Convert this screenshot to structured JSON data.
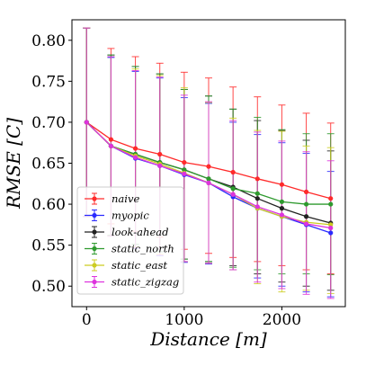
{
  "chart_data": {
    "type": "line",
    "title": "",
    "xlabel": "Distance [m]",
    "ylabel": "RMSE [C]",
    "xlim": [
      -150,
      2650
    ],
    "ylim": [
      0.475,
      0.825
    ],
    "xticks": [
      0,
      1000,
      2000
    ],
    "yticks": [
      0.5,
      0.55,
      0.6,
      0.65,
      0.7,
      0.75,
      0.8
    ],
    "grid": false,
    "legend_position": "lower-left",
    "x": [
      0,
      250,
      500,
      750,
      1000,
      1250,
      1500,
      1750,
      2000,
      2250,
      2500
    ],
    "series": [
      {
        "name": "naive",
        "color": "#ff2a2a",
        "values": [
          0.7,
          0.679,
          0.668,
          0.661,
          0.651,
          0.646,
          0.639,
          0.631,
          0.624,
          0.615,
          0.607
        ],
        "err_low": [
          0.585,
          0.576,
          0.567,
          0.56,
          0.545,
          0.54,
          0.535,
          0.53,
          0.525,
          0.52,
          0.515
        ],
        "err_high": [
          0.815,
          0.79,
          0.78,
          0.772,
          0.761,
          0.754,
          0.743,
          0.731,
          0.721,
          0.711,
          0.699
        ]
      },
      {
        "name": "myopic",
        "color": "#2a2aff",
        "values": [
          0.7,
          0.671,
          0.656,
          0.647,
          0.636,
          0.626,
          0.609,
          0.595,
          0.585,
          0.575,
          0.565
        ],
        "err_low": [
          0.585,
          0.561,
          0.546,
          0.537,
          0.529,
          0.527,
          0.52,
          0.51,
          0.5,
          0.493,
          0.487
        ],
        "err_high": [
          0.815,
          0.779,
          0.762,
          0.754,
          0.73,
          0.723,
          0.7,
          0.685,
          0.675,
          0.662,
          0.64
        ]
      },
      {
        "name": "look-ahead",
        "color": "#222222",
        "values": [
          0.7,
          0.671,
          0.661,
          0.651,
          0.642,
          0.631,
          0.621,
          0.607,
          0.595,
          0.585,
          0.577
        ],
        "err_low": [
          0.585,
          0.562,
          0.551,
          0.542,
          0.533,
          0.53,
          0.525,
          0.515,
          0.505,
          0.5,
          0.495
        ],
        "err_high": [
          0.815,
          0.782,
          0.768,
          0.759,
          0.74,
          0.732,
          0.716,
          0.702,
          0.69,
          0.678,
          0.665
        ]
      },
      {
        "name": "static_north",
        "color": "#2e9a2e",
        "values": [
          0.7,
          0.671,
          0.661,
          0.651,
          0.642,
          0.631,
          0.619,
          0.613,
          0.603,
          0.6,
          0.6
        ],
        "err_low": [
          0.585,
          0.562,
          0.551,
          0.542,
          0.533,
          0.53,
          0.523,
          0.52,
          0.515,
          0.515,
          0.514
        ],
        "err_high": [
          0.815,
          0.782,
          0.768,
          0.759,
          0.74,
          0.732,
          0.716,
          0.706,
          0.691,
          0.686,
          0.686
        ]
      },
      {
        "name": "static_east",
        "color": "#cccc22",
        "values": [
          0.7,
          0.671,
          0.659,
          0.649,
          0.638,
          0.626,
          0.612,
          0.595,
          0.585,
          0.578,
          0.575
        ],
        "err_low": [
          0.585,
          0.561,
          0.548,
          0.539,
          0.53,
          0.528,
          0.52,
          0.503,
          0.493,
          0.495,
          0.491
        ],
        "err_high": [
          0.815,
          0.78,
          0.765,
          0.757,
          0.742,
          0.724,
          0.705,
          0.69,
          0.689,
          0.671,
          0.669
        ]
      },
      {
        "name": "static_zigzag",
        "color": "#dd33dd",
        "values": [
          0.7,
          0.671,
          0.657,
          0.647,
          0.637,
          0.626,
          0.612,
          0.597,
          0.587,
          0.576,
          0.571
        ],
        "err_low": [
          0.585,
          0.561,
          0.547,
          0.538,
          0.53,
          0.528,
          0.52,
          0.505,
          0.497,
          0.49,
          0.485
        ],
        "err_high": [
          0.815,
          0.78,
          0.763,
          0.755,
          0.733,
          0.725,
          0.702,
          0.688,
          0.677,
          0.664,
          0.653
        ]
      }
    ]
  }
}
